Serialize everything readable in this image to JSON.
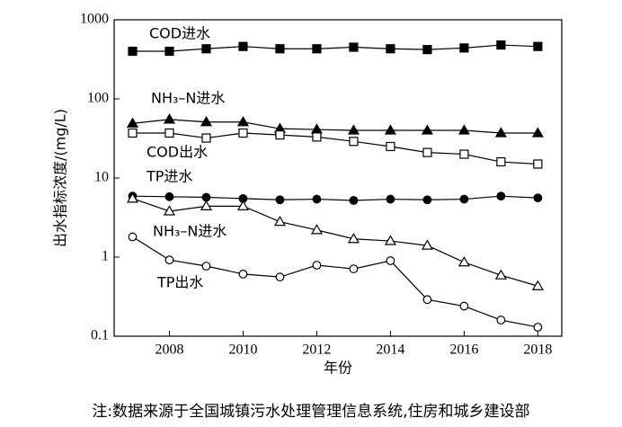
{
  "chart_data": {
    "type": "line",
    "x_label": "年份",
    "y_label": "出水指标浓度/(mg/L)",
    "note": "注:数据来源于全国城镇污水处理管理信息系统,住房和城乡建设部",
    "x": [
      2007,
      2008,
      2009,
      2010,
      2011,
      2012,
      2013,
      2014,
      2015,
      2016,
      2017,
      2018
    ],
    "xlim": [
      2006.5,
      2018.65
    ],
    "xticks": [
      2008,
      2010,
      2012,
      2014,
      2016,
      2018
    ],
    "ylim": [
      0.1,
      1000
    ],
    "yticks": [
      0.1,
      1,
      10,
      100,
      1000
    ],
    "log_y": true,
    "series": [
      {
        "name": "COD进水",
        "color": "#000000",
        "marker": "square",
        "filled": true,
        "values": [
          400,
          400,
          430,
          460,
          430,
          430,
          450,
          430,
          420,
          440,
          480,
          460
        ]
      },
      {
        "name": "NH₃–N进水",
        "color": "#000000",
        "marker": "triangle",
        "filled": true,
        "values": [
          49,
          55,
          51,
          51,
          42,
          41,
          40,
          40,
          40,
          40,
          37,
          37
        ]
      },
      {
        "name": "COD出水",
        "color": "#000000",
        "marker": "square",
        "filled": false,
        "values": [
          37,
          37,
          32,
          37,
          35,
          33,
          29,
          25,
          21,
          20,
          16,
          15
        ]
      },
      {
        "name": "TP进水",
        "color": "#000000",
        "marker": "circle",
        "filled": true,
        "values": [
          5.9,
          5.8,
          5.7,
          5.5,
          5.3,
          5.4,
          5.2,
          5.4,
          5.3,
          5.4,
          5.9,
          5.6
        ]
      },
      {
        "name": "NH₃–N进水",
        "color": "#000000",
        "marker": "triangle",
        "filled": false,
        "values": [
          5.5,
          3.8,
          4.4,
          4.4,
          2.8,
          2.2,
          1.7,
          1.6,
          1.4,
          0.86,
          0.59,
          0.43
        ]
      },
      {
        "name": "TP出水",
        "color": "#000000",
        "marker": "circle",
        "filled": false,
        "values": [
          1.8,
          0.92,
          0.77,
          0.61,
          0.56,
          0.79,
          0.71,
          0.9,
          0.29,
          0.24,
          0.16,
          0.13
        ]
      }
    ]
  }
}
